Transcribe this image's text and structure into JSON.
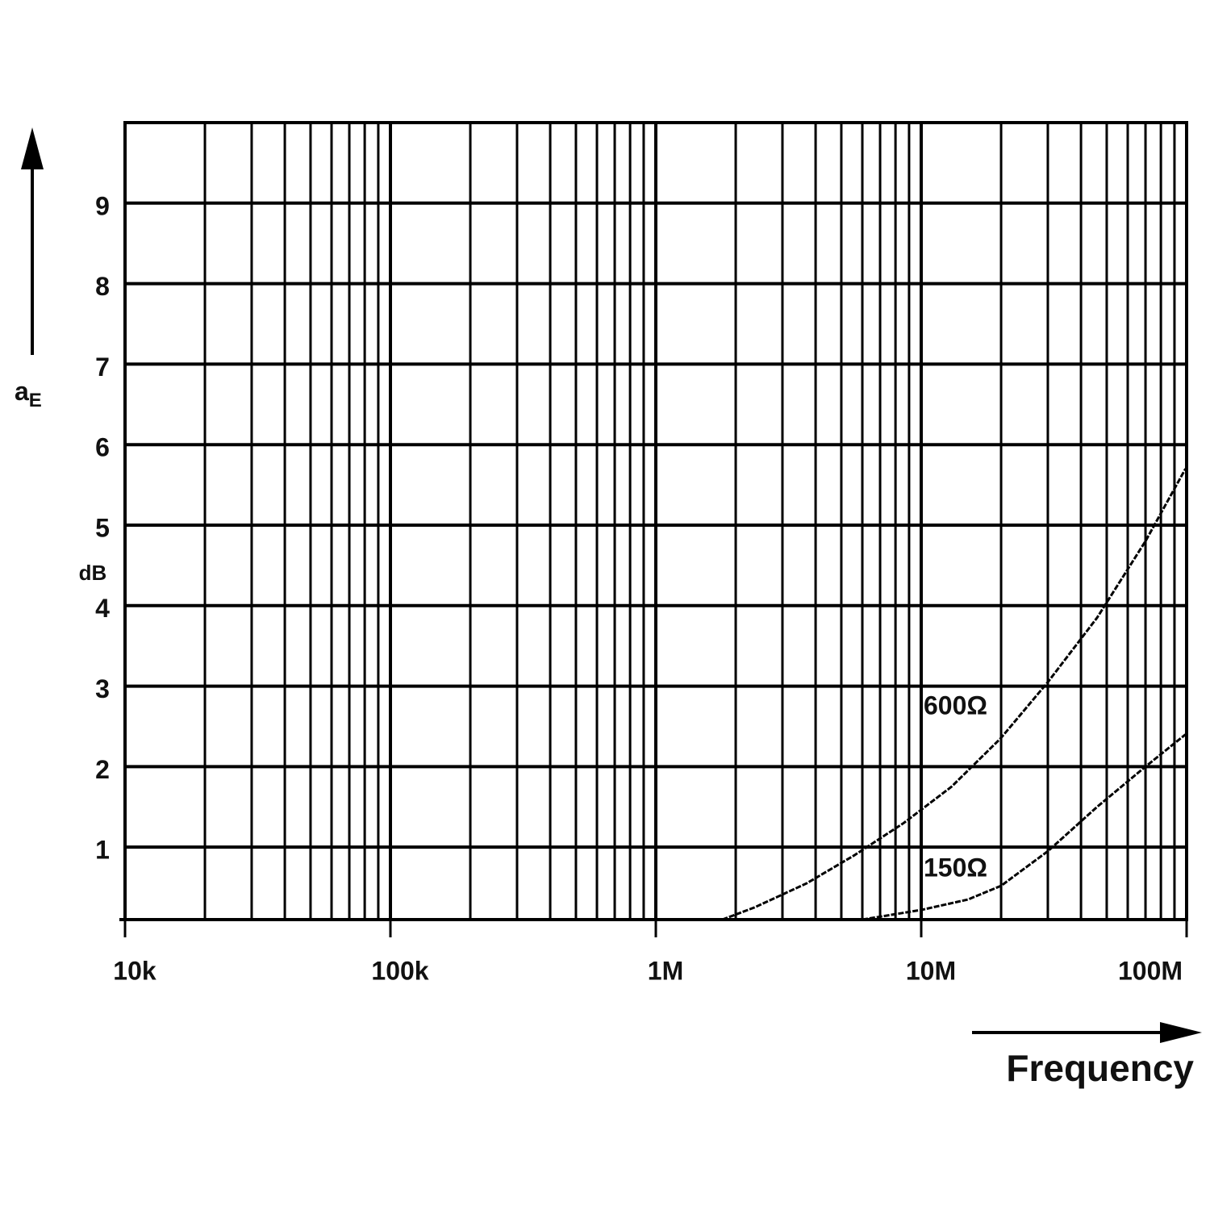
{
  "chart_data": {
    "type": "line",
    "y_label": {
      "text": "a",
      "subscript": "E"
    },
    "y_unit": "dB",
    "x_label": "Frequency",
    "x_scale": "log",
    "grid": true,
    "minor_grid": true,
    "xlim": [
      10000,
      100000000
    ],
    "ylim": [
      0.1,
      10
    ],
    "xticks": [
      {
        "value": 10000,
        "label": "10k"
      },
      {
        "value": 100000,
        "label": "100k"
      },
      {
        "value": 1000000,
        "label": "1M"
      },
      {
        "value": 10000000,
        "label": "10M"
      },
      {
        "value": 100000000,
        "label": "100M"
      }
    ],
    "yticks": [
      1,
      2,
      3,
      4,
      5,
      6,
      7,
      8,
      9
    ],
    "series": [
      {
        "name": "600Ω",
        "color": "#000000",
        "x": [
          1780000,
          2350000,
          3700000,
          5600000,
          8600000,
          13000000,
          19900000,
          30000000,
          46000000,
          70000000,
          99000000
        ],
        "values": [
          0.1,
          0.25,
          0.55,
          0.9,
          1.3,
          1.75,
          2.35,
          3.05,
          3.85,
          4.8,
          5.7
        ]
      },
      {
        "name": "150Ω",
        "color": "#000000",
        "x": [
          6000000,
          10000000,
          15000000,
          20000000,
          30000000,
          46000000,
          70000000,
          99000000
        ],
        "values": [
          0.1,
          0.22,
          0.35,
          0.52,
          0.95,
          1.5,
          2.0,
          2.4
        ]
      }
    ]
  }
}
